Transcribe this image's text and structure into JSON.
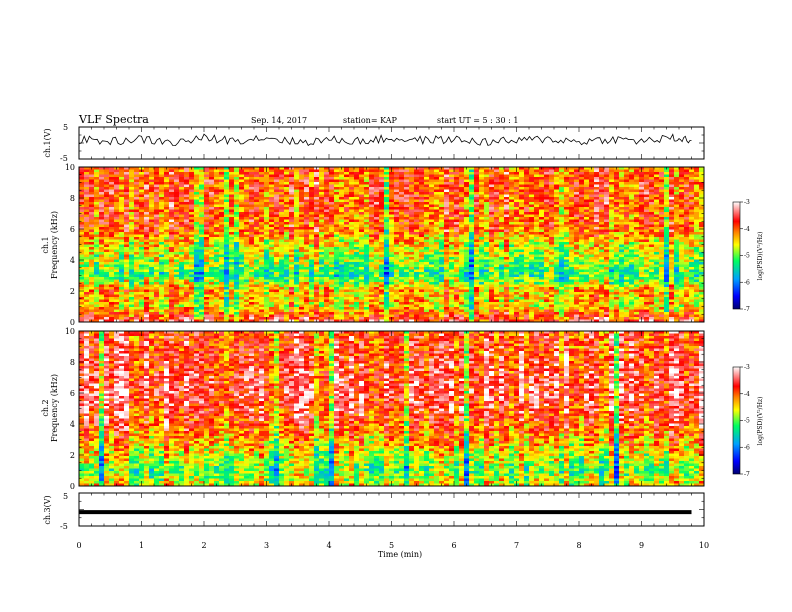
{
  "header": {
    "title": "VLF Spectra",
    "date": "Sep. 14, 2017",
    "station": "station= KAP",
    "start": "start UT =  5 : 30 : 1"
  },
  "colors": {
    "spectrogram_ramp": [
      "#000070",
      "#0000ff",
      "#00a0ff",
      "#00ff60",
      "#ffff00",
      "#ff8000",
      "#ff0000",
      "#ffffff"
    ],
    "trace": "#000000"
  },
  "chart_data": [
    {
      "type": "line",
      "panel": "ch1-waveform",
      "ylabel": "ch.1(V)",
      "ylim": [
        -5,
        5
      ],
      "yticks": [
        "5",
        "-5"
      ],
      "series": [
        {
          "values_description_only": false,
          "x_min": [
            0,
            0.5,
            1,
            1.5,
            2,
            2.5,
            3,
            3.5,
            4,
            4.5,
            5,
            5.5,
            6,
            6.5,
            7,
            7.5,
            8,
            8.5,
            9,
            9.5,
            9.8
          ],
          "y_V": [
            1.0,
            0.5,
            1.2,
            0.0,
            1.5,
            0.8,
            1.8,
            0.2,
            1.0,
            0.6,
            1.4,
            0.9,
            1.1,
            0.3,
            0.7,
            1.3,
            0.4,
            1.2,
            0.6,
            1.5,
            0.8
          ]
        }
      ]
    },
    {
      "type": "heatmap",
      "panel": "ch1-spectrogram",
      "ylabel_1": "ch.1",
      "ylabel_2": "Frequency (kHz)",
      "ylim": [
        0,
        10
      ],
      "yticks": [
        "0",
        "2",
        "4",
        "6",
        "8",
        "10"
      ],
      "xlim": [
        0,
        10
      ],
      "dominant_level_by_freq_kHz": [
        [
          0,
          -3.5
        ],
        [
          1,
          -4.5
        ],
        [
          2,
          -4.2
        ],
        [
          3,
          -5.2
        ],
        [
          4,
          -4.8
        ],
        [
          5,
          -4.5
        ],
        [
          6,
          -4.0
        ],
        [
          7,
          -4.0
        ],
        [
          8,
          -3.9
        ],
        [
          9,
          -3.9
        ],
        [
          10,
          -4.0
        ]
      ],
      "colorbar": {
        "label": "log(PSD)(V²/Hz)",
        "ticks": [
          "-3",
          "-4",
          "-5",
          "-6",
          "-7"
        ],
        "range": [
          -7,
          -3
        ]
      }
    },
    {
      "type": "heatmap",
      "panel": "ch2-spectrogram",
      "ylabel_1": "ch.2",
      "ylabel_2": "Frequency (kHz)",
      "ylim": [
        0,
        10
      ],
      "yticks": [
        "0",
        "2",
        "4",
        "6",
        "8",
        "10"
      ],
      "xlim": [
        0,
        10
      ],
      "dominant_level_by_freq_kHz": [
        [
          0,
          -4.5
        ],
        [
          1,
          -5.0
        ],
        [
          2,
          -4.6
        ],
        [
          3,
          -4.2
        ],
        [
          4,
          -3.9
        ],
        [
          5,
          -3.7
        ],
        [
          6,
          -3.5
        ],
        [
          7,
          -3.6
        ],
        [
          8,
          -3.7
        ],
        [
          9,
          -3.8
        ],
        [
          10,
          -3.8
        ]
      ],
      "colorbar": {
        "label": "log(PSD)(V²/Hz)",
        "ticks": [
          "-3",
          "-4",
          "-5",
          "-6",
          "-7"
        ],
        "range": [
          -7,
          -3
        ]
      }
    },
    {
      "type": "line",
      "panel": "ch3-waveform",
      "ylabel": "ch.3(V)",
      "ylim": [
        -5,
        5
      ],
      "yticks": [
        "5",
        "-5"
      ],
      "series": [
        {
          "x_min": [
            0,
            9.8
          ],
          "y_V": [
            -0.8,
            -0.8
          ]
        }
      ]
    }
  ],
  "xaxis": {
    "label": "Time (min)",
    "ticks": [
      "0",
      "1",
      "2",
      "3",
      "4",
      "5",
      "6",
      "7",
      "8",
      "9",
      "10"
    ],
    "xlim": [
      0,
      10
    ]
  }
}
